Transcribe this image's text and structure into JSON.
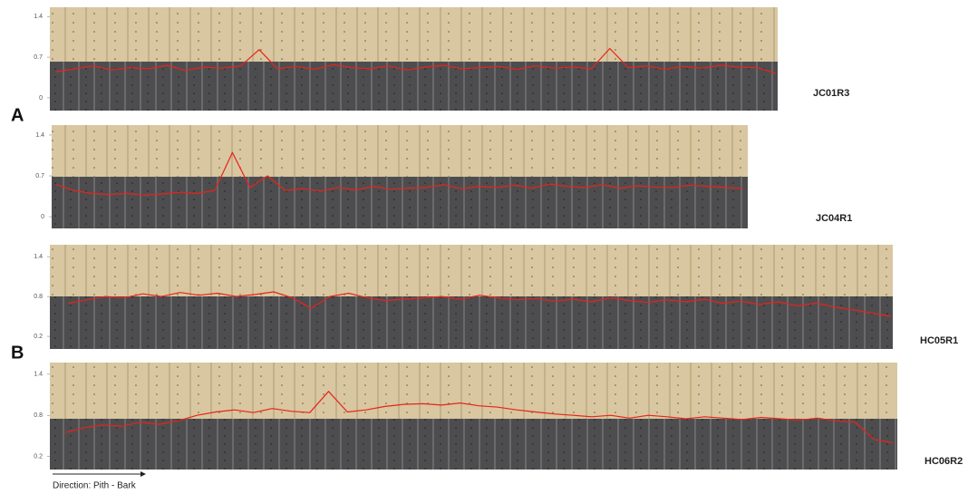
{
  "chart_data": [
    {
      "type": "line",
      "ylim": [
        -0.22,
        1.56
      ],
      "yticks": [
        0,
        0.7,
        1.4
      ],
      "series": [
        {
          "name": "JC01R3",
          "color": "#e8231c",
          "values": [
            0.45,
            0.5,
            0.55,
            0.48,
            0.52,
            0.5,
            0.56,
            0.47,
            0.53,
            0.51,
            0.55,
            0.83,
            0.5,
            0.54,
            0.49,
            0.57,
            0.52,
            0.5,
            0.55,
            0.48,
            0.53,
            0.56,
            0.5,
            0.52,
            0.54,
            0.49,
            0.55,
            0.51,
            0.53,
            0.5,
            0.85,
            0.52,
            0.55,
            0.49,
            0.54,
            0.51,
            0.56,
            0.53,
            0.52,
            0.42
          ]
        }
      ]
    },
    {
      "type": "line",
      "ylim": [
        -0.2,
        1.57
      ],
      "yticks": [
        0,
        0.7,
        1.4
      ],
      "series": [
        {
          "name": "JC04R1",
          "color": "#e8231c",
          "values": [
            0.55,
            0.45,
            0.4,
            0.38,
            0.4,
            0.37,
            0.39,
            0.42,
            0.4,
            0.45,
            1.1,
            0.5,
            0.7,
            0.45,
            0.48,
            0.44,
            0.5,
            0.46,
            0.52,
            0.47,
            0.49,
            0.5,
            0.55,
            0.48,
            0.52,
            0.5,
            0.54,
            0.49,
            0.56,
            0.52,
            0.5,
            0.55,
            0.49,
            0.53,
            0.51,
            0.5,
            0.54,
            0.52,
            0.5,
            0.48
          ]
        }
      ]
    },
    {
      "type": "line",
      "ylim": [
        0.01,
        1.58
      ],
      "yticks": [
        0.2,
        0.8,
        1.4
      ],
      "series": [
        {
          "name": "HC05R1",
          "color": "#e8231c",
          "values": [
            0.7,
            0.75,
            0.8,
            0.78,
            0.84,
            0.8,
            0.86,
            0.82,
            0.85,
            0.8,
            0.83,
            0.87,
            0.78,
            0.62,
            0.8,
            0.85,
            0.78,
            0.74,
            0.76,
            0.78,
            0.8,
            0.76,
            0.82,
            0.78,
            0.75,
            0.77,
            0.73,
            0.76,
            0.72,
            0.78,
            0.74,
            0.71,
            0.75,
            0.72,
            0.76,
            0.7,
            0.73,
            0.68,
            0.72,
            0.66,
            0.7,
            0.64,
            0.6,
            0.55,
            0.5
          ]
        }
      ]
    },
    {
      "type": "line",
      "ylim": [
        0.01,
        1.57
      ],
      "yticks": [
        0.2,
        0.8,
        1.4
      ],
      "series": [
        {
          "name": "HC06R2",
          "color": "#e8231c",
          "values": [
            0.55,
            0.62,
            0.66,
            0.64,
            0.7,
            0.67,
            0.72,
            0.8,
            0.85,
            0.88,
            0.84,
            0.9,
            0.86,
            0.84,
            1.15,
            0.85,
            0.88,
            0.93,
            0.96,
            0.97,
            0.95,
            0.98,
            0.94,
            0.92,
            0.88,
            0.85,
            0.82,
            0.8,
            0.78,
            0.8,
            0.76,
            0.8,
            0.78,
            0.75,
            0.78,
            0.76,
            0.74,
            0.77,
            0.75,
            0.73,
            0.76,
            0.72,
            0.7,
            0.45,
            0.4
          ]
        }
      ]
    }
  ],
  "panel_labels": [
    "A",
    "B"
  ],
  "direction_label": "Direction: Pith - Bark"
}
